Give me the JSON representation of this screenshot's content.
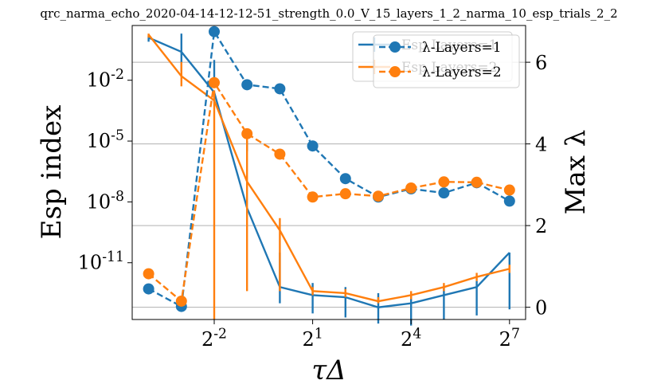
{
  "chart_data": {
    "type": "line",
    "title": "qrc_narma_echo_2020-04-14-12-12-51_strength_0.0_V_15_layers_1_2_narma_10_esp_trials_2_2",
    "xlabel": "τΔ",
    "ylabel_left": "Esp index",
    "ylabel_right": "Max λ",
    "x_scale": "log2",
    "x_ticks": [
      {
        "exp": -2,
        "base": "2",
        "sup": "-2"
      },
      {
        "exp": 1,
        "base": "2",
        "sup": "1"
      },
      {
        "exp": 4,
        "base": "2",
        "sup": "4"
      },
      {
        "exp": 7,
        "base": "2",
        "sup": "7"
      }
    ],
    "x_exponents": [
      -4,
      -3,
      -2,
      -1,
      0,
      1,
      2,
      3,
      4,
      5,
      6,
      7
    ],
    "left_axis": {
      "scale": "log10",
      "ylim_exp": [
        -13.8,
        0.7
      ],
      "ticks": [
        {
          "exp": -2,
          "label_base": "10",
          "label_sup": "-2"
        },
        {
          "exp": -5,
          "label_base": "10",
          "label_sup": "-5"
        },
        {
          "exp": -8,
          "label_base": "10",
          "label_sup": "-8"
        },
        {
          "exp": -11,
          "label_base": "10",
          "label_sup": "-11"
        }
      ]
    },
    "right_axis": {
      "scale": "linear",
      "ylim": [
        -0.3,
        6.9
      ],
      "ticks": [
        0,
        2,
        4,
        6
      ],
      "grid": true
    },
    "esp_series": [
      {
        "name": "Esp Layers=1",
        "color": "#1f77b4",
        "log10_values": [
          0.1,
          -0.6,
          -2.6,
          -8.3,
          -12.2,
          -12.6,
          -12.7,
          -13.2,
          -13.0,
          -12.6,
          -12.2,
          -10.5
        ],
        "err_low_log10": [
          -0.1,
          -1.6,
          -2.0,
          -5.5,
          -13.0,
          -13.5,
          -13.7,
          -14.0,
          -14.1,
          -13.8,
          -13.6,
          -13.3
        ],
        "err_high_log10": [
          0.2,
          0.3,
          -1.0,
          -5.0,
          -10.5,
          -12.0,
          -12.2,
          -12.5,
          -12.5,
          -12.2,
          -11.9,
          -10.5
        ]
      },
      {
        "name": "Esp Layers=2",
        "color": "#ff7f0e",
        "log10_values": [
          0.25,
          -1.8,
          -3.0,
          -7.0,
          -9.4,
          -12.4,
          -12.5,
          -12.9,
          -12.6,
          -12.2,
          -11.7,
          -11.3
        ],
        "err_low_log10": [
          0.1,
          -2.3,
          -13.8,
          -12.4,
          -12.4,
          -12.6,
          -12.7,
          -13.0,
          -12.8,
          -12.4,
          -11.9,
          -11.5
        ],
        "err_high_log10": [
          0.3,
          -1.1,
          -2.5,
          -4.8,
          -8.8,
          -12.2,
          -12.3,
          -12.7,
          -12.4,
          -12.0,
          -11.5,
          -11.1
        ]
      }
    ],
    "lambda_series": [
      {
        "name": "λ-Layers=1",
        "color": "#1f77b4",
        "values": [
          0.45,
          0.02,
          6.75,
          5.45,
          5.35,
          3.95,
          3.15,
          2.7,
          2.9,
          2.8,
          3.05,
          2.6
        ]
      },
      {
        "name": "λ-Layers=2",
        "color": "#ff7f0e",
        "values": [
          0.82,
          0.15,
          5.5,
          4.25,
          3.75,
          2.7,
          2.78,
          2.72,
          2.92,
          3.07,
          3.06,
          2.87
        ]
      }
    ],
    "legend_esp": {
      "placement": "top-right"
    },
    "legend_lambda": {
      "placement": "top-right"
    }
  }
}
